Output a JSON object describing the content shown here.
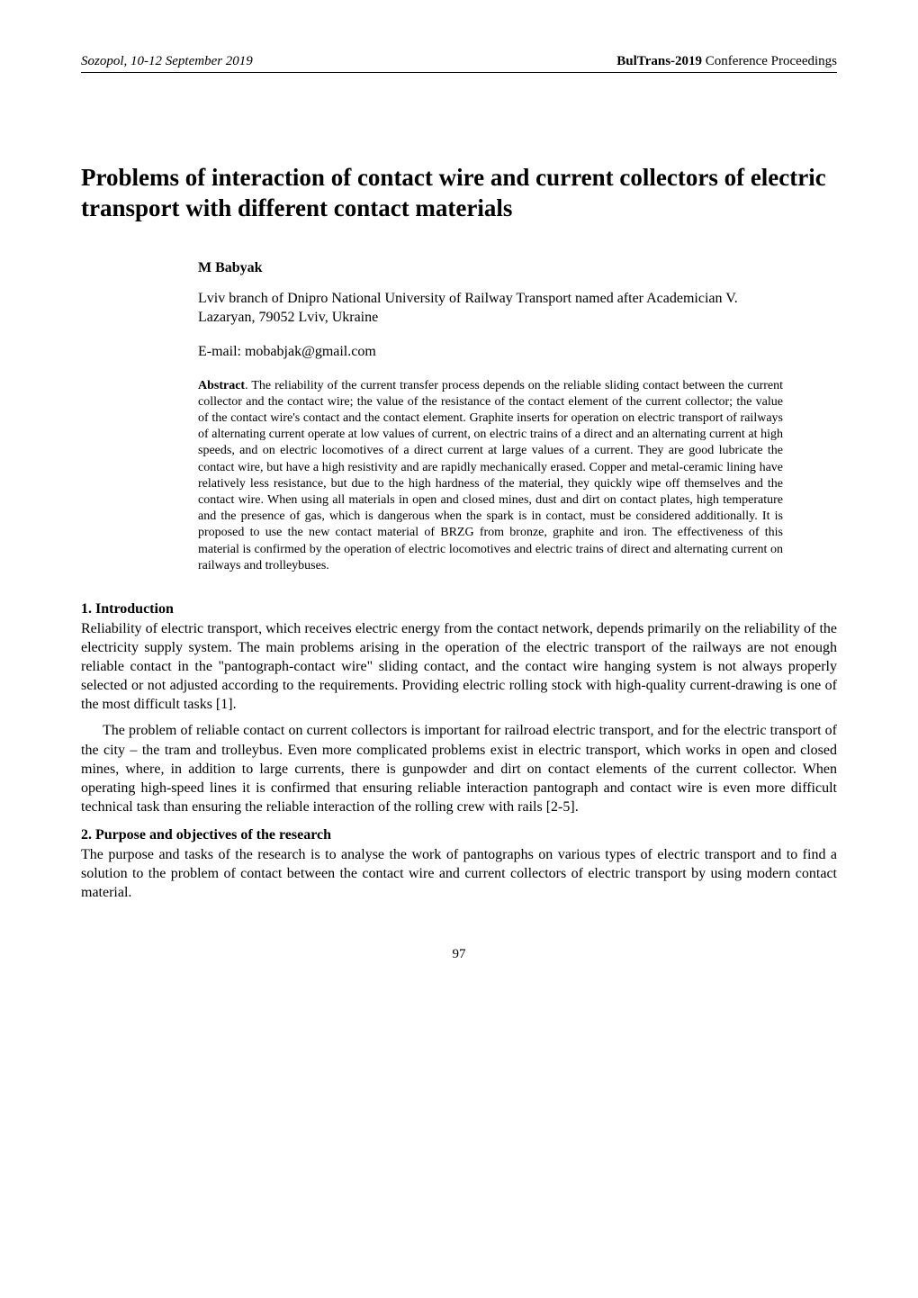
{
  "header": {
    "left": "Sozopol, 10-12 September 2019",
    "right_bold": "BulTrans-2019",
    "right_plain": " Conference Proceedings"
  },
  "title": "Problems of interaction of contact wire and current collectors of electric transport with different contact materials",
  "author": "M Babyak",
  "affiliation": "Lviv branch of Dnipro National University of Railway Transport named after Academician V. Lazaryan, 79052 Lviv, Ukraine",
  "email": "E-mail: mobabjak@gmail.com",
  "abstract_label": "Abstract",
  "abstract_text": ". The reliability of the current transfer process depends on the reliable sliding contact between the current collector and the contact wire; the value of the resistance of the contact element of the current collector; the value of the contact wire's contact and the contact element. Graphite inserts for operation on electric transport of railways of alternating current operate at low values of current, on electric trains of a direct and an alternating current at high speeds, and on electric locomotives of a direct current at large values of a current. They are good lubricate the contact wire, but have a high resistivity and are rapidly mechanically erased. Copper and metal-ceramic lining have relatively less resistance, but due to the high hardness of the material, they quickly wipe off themselves and the contact wire. When using all materials in open and closed mines, dust and dirt on contact plates, high temperature and the presence of gas, which is dangerous when the spark is in contact, must be considered additionally. It is proposed to use the new contact material of BRZG from bronze, graphite and iron. The effectiveness of this material is confirmed by the operation of electric locomotives and electric trains of direct and alternating current on railways and trolleybuses.",
  "section1": {
    "heading": "1.  Introduction",
    "para1": "Reliability of electric transport, which receives electric energy from the contact network, depends primarily on the reliability of the electricity supply system. The main problems arising in the operation of the electric transport of the railways are not enough reliable contact in the \"pantograph-contact wire\" sliding contact, and the contact wire hanging system is not always properly selected or not adjusted according to the requirements. Providing electric rolling stock with high-quality current-drawing is one of the most difficult tasks [1].",
    "para2": "The problem of reliable contact on current collectors is important for railroad electric transport, and for the electric transport of the city – the tram and trolleybus. Even more complicated problems exist in electric transport, which works in open and closed mines, where, in addition to large currents, there is gunpowder and dirt on contact elements of the current collector. When operating high-speed lines it is confirmed that ensuring reliable interaction pantograph and contact wire is even more difficult technical task than ensuring the reliable interaction of the rolling crew with rails [2-5]."
  },
  "section2": {
    "heading": "2.  Purpose and objectives of the research",
    "para1": "The purpose and tasks of the research is to analyse the work of pantographs on various types of electric transport and to find a solution to the problem of contact between the contact wire and current collectors of electric transport by using modern contact material."
  },
  "page_number": "97"
}
